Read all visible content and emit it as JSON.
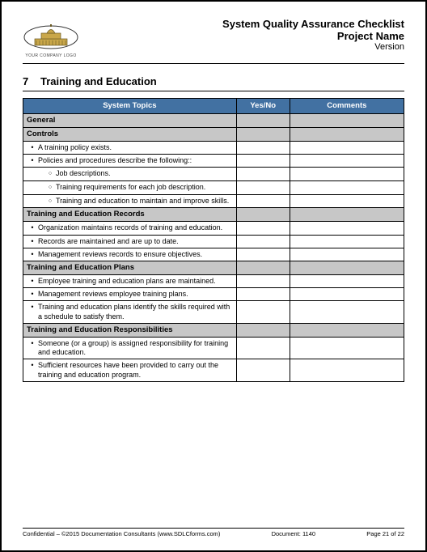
{
  "header": {
    "title1": "System Quality Assurance Checklist",
    "title2": "Project Name",
    "title3": "Version",
    "logo_caption": "YOUR COMPANY LOGO"
  },
  "section": {
    "number": "7",
    "title": "Training and Education"
  },
  "table": {
    "headers": {
      "topics": "System Topics",
      "yesno": "Yes/No",
      "comments": "Comments"
    },
    "header_bg": "#4271a2",
    "header_fg": "#ffffff",
    "subhead_bg": "#c7c7c7",
    "border_color": "#000000",
    "rows": [
      {
        "type": "subhead",
        "text": "General"
      },
      {
        "type": "subhead",
        "text": "Controls"
      },
      {
        "type": "bullet",
        "text": "A training policy exists."
      },
      {
        "type": "bullet",
        "text": "Policies and procedures describe the following::"
      },
      {
        "type": "sub",
        "text": "Job descriptions."
      },
      {
        "type": "sub",
        "text": "Training requirements for each job description."
      },
      {
        "type": "sub",
        "text": "Training and education to maintain and improve skills."
      },
      {
        "type": "subhead",
        "text": "Training and Education Records"
      },
      {
        "type": "bullet",
        "text": "Organization maintains records of training and education."
      },
      {
        "type": "bullet",
        "text": "Records are maintained and are up to date."
      },
      {
        "type": "bullet",
        "text": "Management reviews records to ensure objectives."
      },
      {
        "type": "subhead",
        "text": "Training and Education Plans"
      },
      {
        "type": "bullet",
        "text": "Employee training and education plans are maintained."
      },
      {
        "type": "bullet",
        "text": "Management reviews employee training plans."
      },
      {
        "type": "bullet",
        "text": "Training and education plans identify the skills required with a schedule to satisfy them."
      },
      {
        "type": "subhead",
        "text": "Training and Education Responsibilities"
      },
      {
        "type": "bullet",
        "text": "Someone (or a group) is assigned responsibility for training and education."
      },
      {
        "type": "bullet",
        "text": "Sufficient resources have been provided to carry out the training and education program."
      }
    ]
  },
  "footer": {
    "left": "Confidential – ©2015 Documentation Consultants (www.SDLCforms.com)",
    "mid": "Document: 1140",
    "right": "Page 21 of 22"
  },
  "logo": {
    "dome_fill": "#c9a74a",
    "dome_stroke": "#6b5a23",
    "ellipse_stroke": "#333333"
  }
}
